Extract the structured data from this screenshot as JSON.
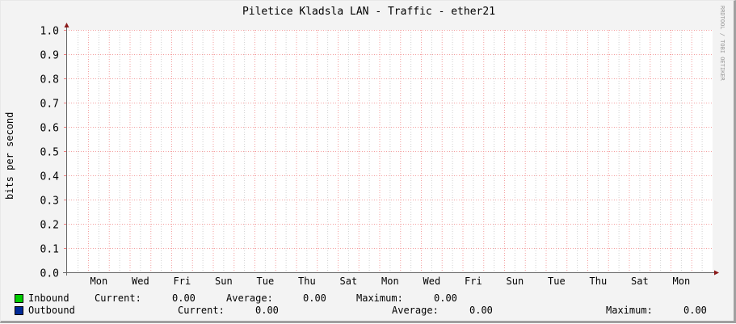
{
  "chart_data": {
    "type": "area",
    "title": "Piletice Kladsla LAN - Traffic - ether21",
    "ylabel": "bits per second",
    "xlabel": "",
    "ylim": [
      0,
      1.0
    ],
    "y_ticks": [
      "0.0",
      "0.1",
      "0.2",
      "0.3",
      "0.4",
      "0.5",
      "0.6",
      "0.7",
      "0.8",
      "0.9",
      "1.0"
    ],
    "x_ticks": [
      "Mon",
      "Wed",
      "Fri",
      "Sun",
      "Tue",
      "Thu",
      "Sat",
      "Mon",
      "Wed",
      "Fri",
      "Sun",
      "Tue",
      "Thu",
      "Sat",
      "Mon"
    ],
    "grid": true,
    "watermark": "RRDTOOL / TOBI OETIKER",
    "series": [
      {
        "name": "Inbound",
        "color": "#00cc00",
        "values": [],
        "current_label": "Current:",
        "current": "0.00",
        "average_label": "Average:",
        "average": "0.00",
        "maximum_label": "Maximum:",
        "maximum": "0.00"
      },
      {
        "name": "Outbound",
        "color": "#002a97",
        "values": [],
        "current_label": "Current:",
        "current": "0.00",
        "average_label": "Average:",
        "average": "0.00",
        "maximum_label": "Maximum:",
        "maximum": "0.00"
      }
    ]
  }
}
